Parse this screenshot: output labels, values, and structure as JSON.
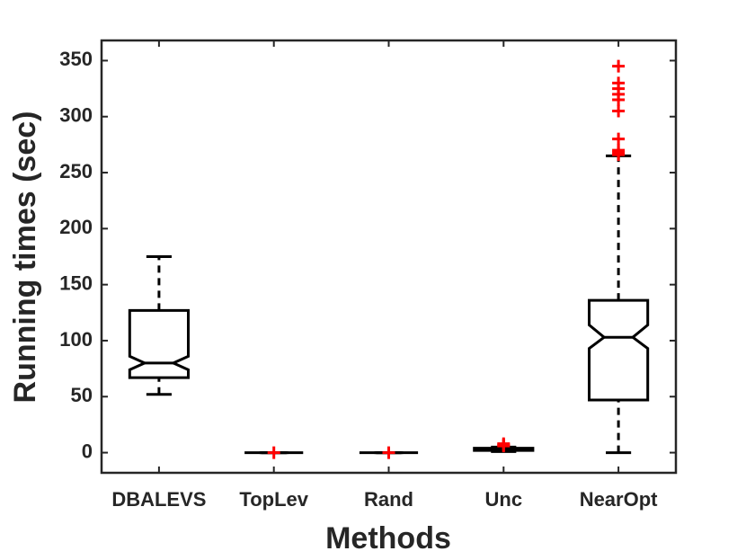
{
  "chart_data": {
    "type": "box",
    "x_label": "Methods",
    "y_label": "Running times (sec)",
    "categories": [
      "DBALEVS",
      "TopLev",
      "Rand",
      "Unc",
      "NearOpt"
    ],
    "boxes": [
      {
        "min": 52,
        "q1": 67,
        "median": 80,
        "q3": 127,
        "max": 175,
        "notch_low": 74,
        "notch_high": 86,
        "outliers": []
      },
      {
        "min": 0,
        "q1": 0,
        "median": 0,
        "q3": 0,
        "max": 0,
        "notch_low": 0,
        "notch_high": 0,
        "outliers": [
          0
        ]
      },
      {
        "min": 0,
        "q1": 0,
        "median": 0,
        "q3": 0,
        "max": 0,
        "notch_low": 0,
        "notch_high": 0,
        "outliers": [
          0
        ]
      },
      {
        "min": 1,
        "q1": 2,
        "median": 3,
        "q3": 4,
        "max": 5,
        "notch_low": 2.5,
        "notch_high": 3.5,
        "outliers": [
          6,
          7,
          8
        ]
      },
      {
        "min": 0,
        "q1": 47,
        "median": 103,
        "q3": 136,
        "max": 265,
        "notch_low": 93,
        "notch_high": 114,
        "outliers": [
          266,
          268,
          270,
          280,
          305,
          315,
          320,
          325,
          330,
          345
        ]
      }
    ],
    "box_color": "#000000",
    "outlier_color": "#ff0000",
    "xlim": [
      0.5,
      5.5
    ],
    "ylim": [
      -18,
      368
    ],
    "yticks": [
      0,
      50,
      100,
      150,
      200,
      250,
      300,
      350
    ],
    "grid": false
  }
}
